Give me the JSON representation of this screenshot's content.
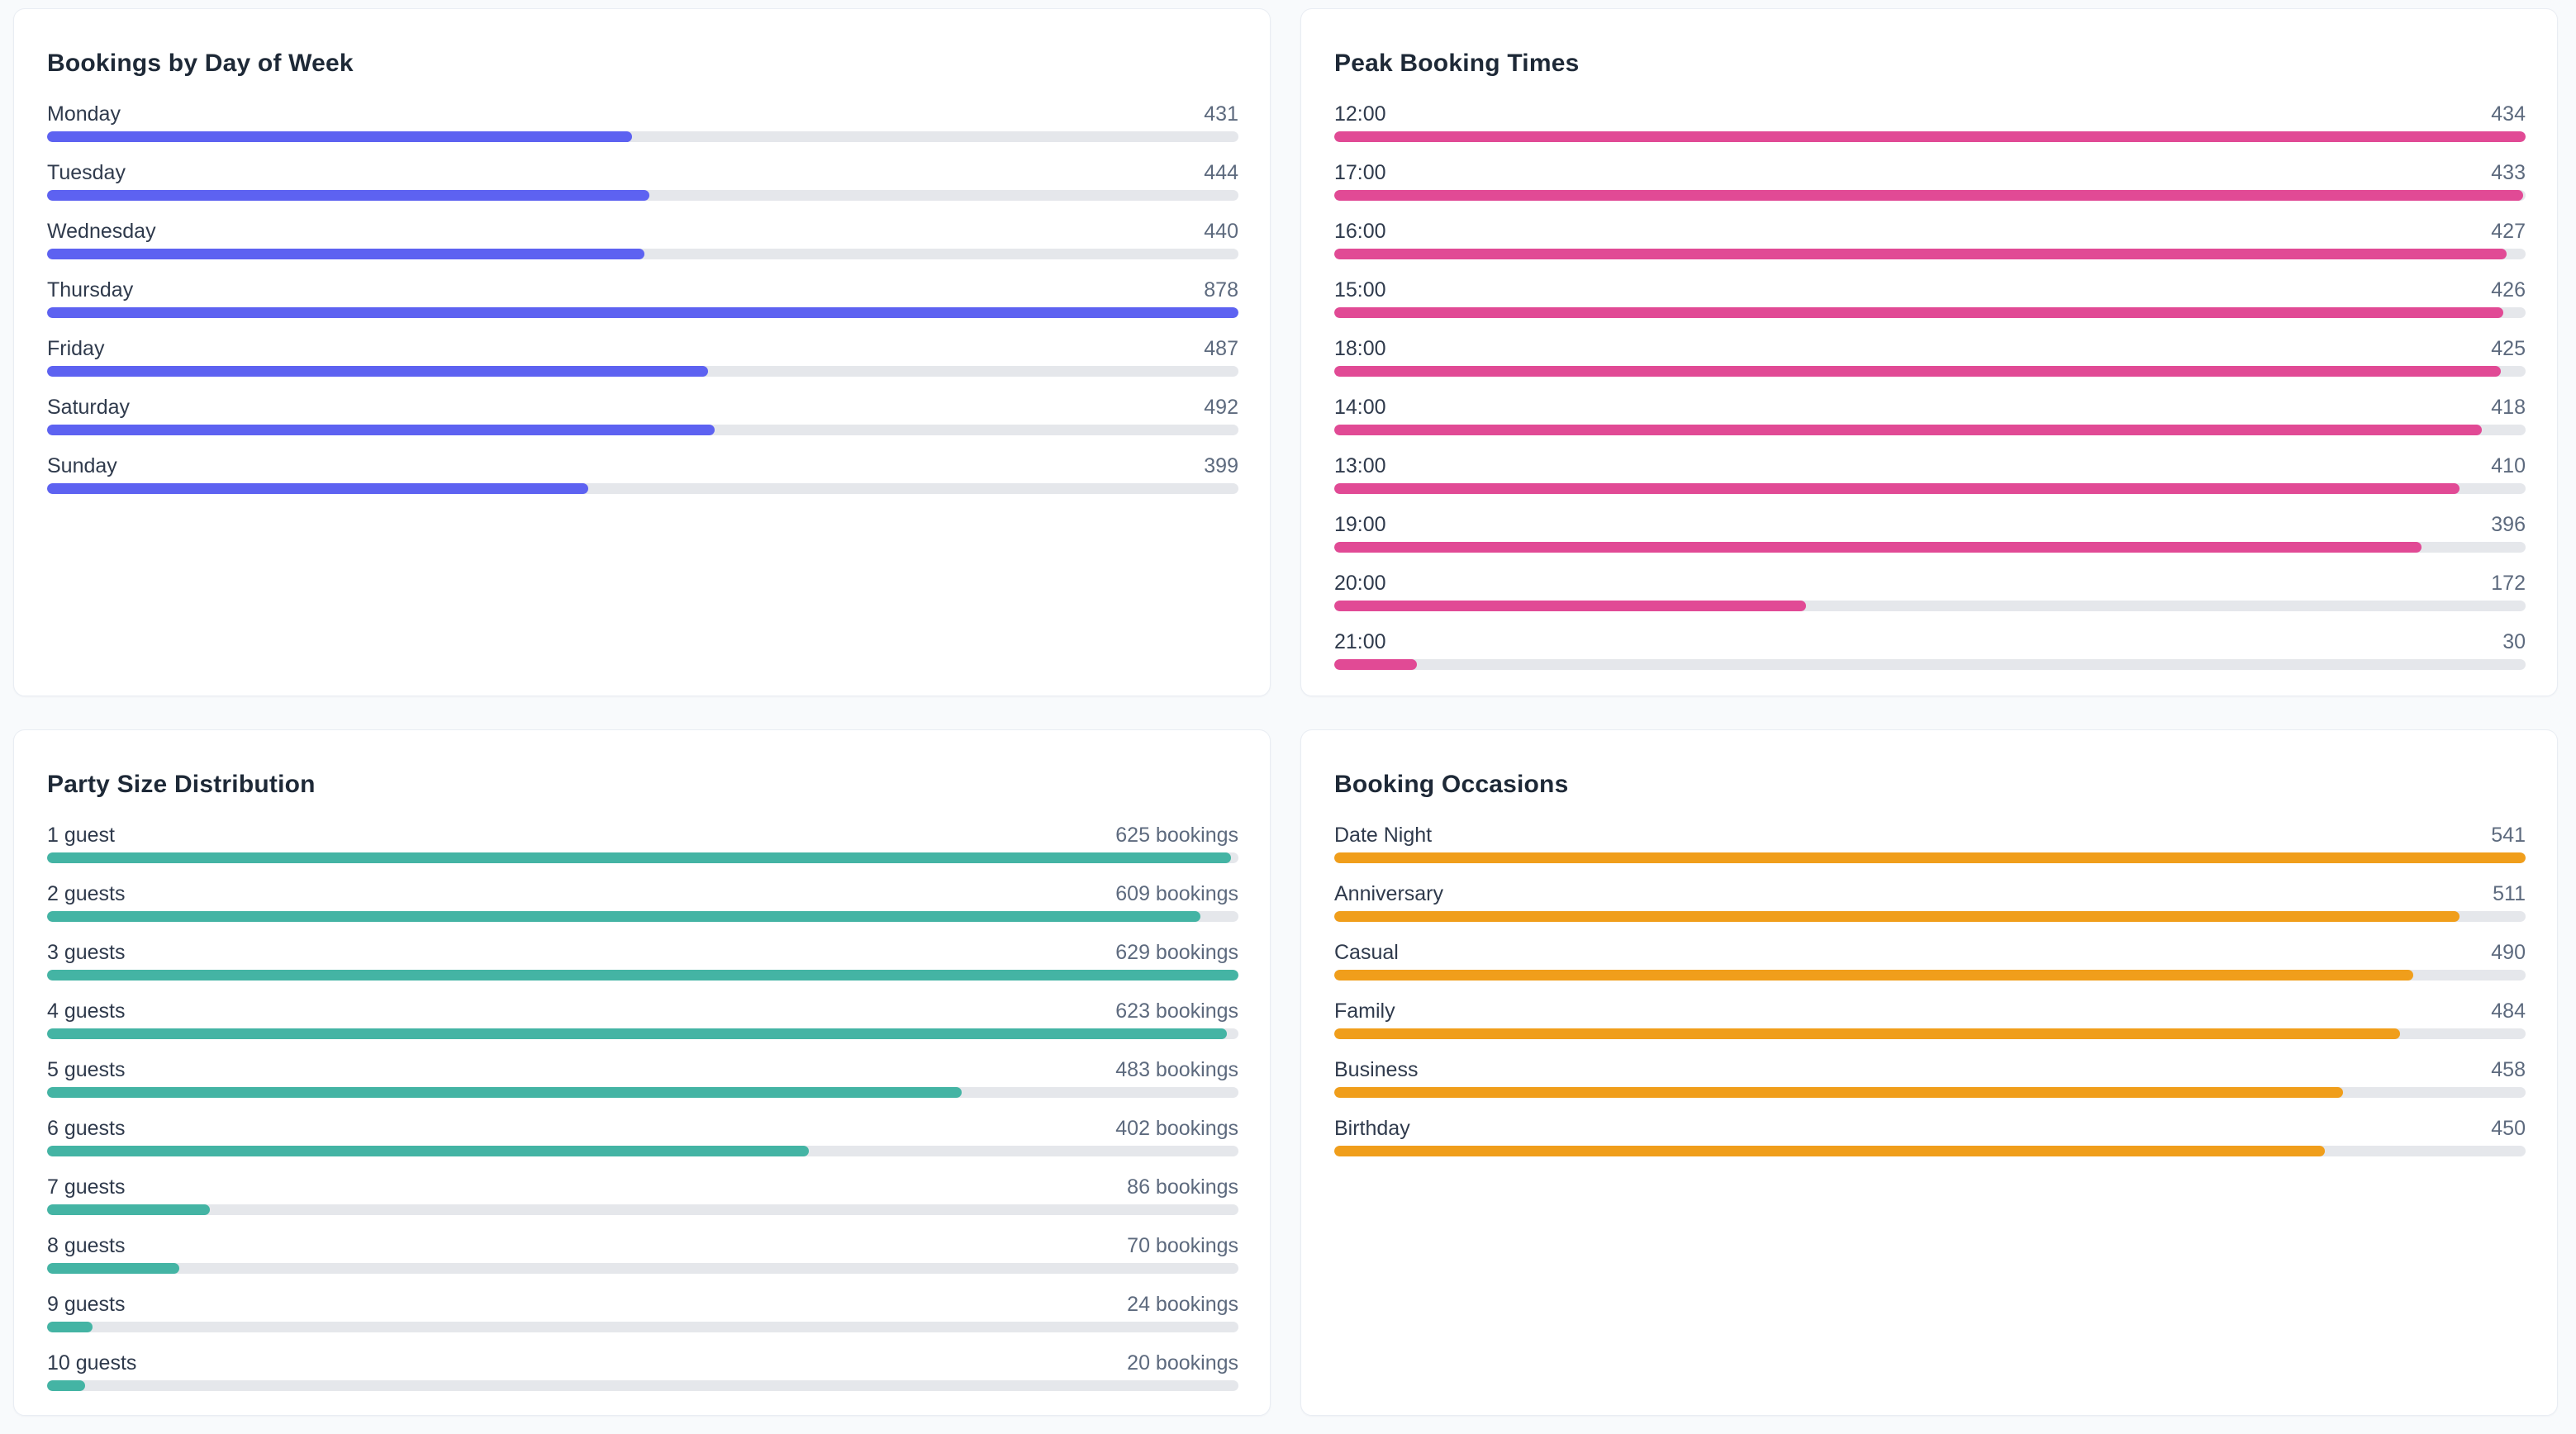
{
  "theme": {
    "page_background": "#f8fafc",
    "card_background": "#ffffff",
    "card_border": "#e9edf3",
    "title_color": "#1e2937",
    "label_color": "#2f3a4c",
    "value_color": "#5d6a7e",
    "track_color": "#e5e7eb"
  },
  "chart_data": [
    {
      "id": "bookings-by-day",
      "type": "bar",
      "orientation": "horizontal",
      "title": "Bookings by Day of Week",
      "bar_color": "#5d62f1",
      "grid": false,
      "legend": false,
      "value_suffix": "",
      "categories": [
        "Monday",
        "Tuesday",
        "Wednesday",
        "Thursday",
        "Friday",
        "Saturday",
        "Sunday"
      ],
      "values": [
        431,
        444,
        440,
        878,
        487,
        492,
        399
      ],
      "xlim": [
        0,
        878
      ]
    },
    {
      "id": "peak-booking-times",
      "type": "bar",
      "orientation": "horizontal",
      "title": "Peak Booking Times",
      "bar_color": "#e14a95",
      "grid": false,
      "legend": false,
      "value_suffix": "",
      "categories": [
        "12:00",
        "17:00",
        "16:00",
        "15:00",
        "18:00",
        "14:00",
        "13:00",
        "19:00",
        "20:00",
        "21:00"
      ],
      "values": [
        434,
        433,
        427,
        426,
        425,
        418,
        410,
        396,
        172,
        30
      ],
      "xlim": [
        0,
        434
      ]
    },
    {
      "id": "party-size-distribution",
      "type": "bar",
      "orientation": "horizontal",
      "title": "Party Size Distribution",
      "bar_color": "#44b4a4",
      "grid": false,
      "legend": false,
      "value_suffix": " bookings",
      "categories": [
        "1 guest",
        "2 guests",
        "3 guests",
        "4 guests",
        "5 guests",
        "6 guests",
        "7 guests",
        "8 guests",
        "9 guests",
        "10 guests"
      ],
      "values": [
        625,
        609,
        629,
        623,
        483,
        402,
        86,
        70,
        24,
        20
      ],
      "xlim": [
        0,
        629
      ]
    },
    {
      "id": "booking-occasions",
      "type": "bar",
      "orientation": "horizontal",
      "title": "Booking Occasions",
      "bar_color": "#f09e1b",
      "grid": false,
      "legend": false,
      "value_suffix": "",
      "categories": [
        "Date Night",
        "Anniversary",
        "Casual",
        "Family",
        "Business",
        "Birthday"
      ],
      "values": [
        541,
        511,
        490,
        484,
        458,
        450
      ],
      "xlim": [
        0,
        541
      ]
    }
  ]
}
